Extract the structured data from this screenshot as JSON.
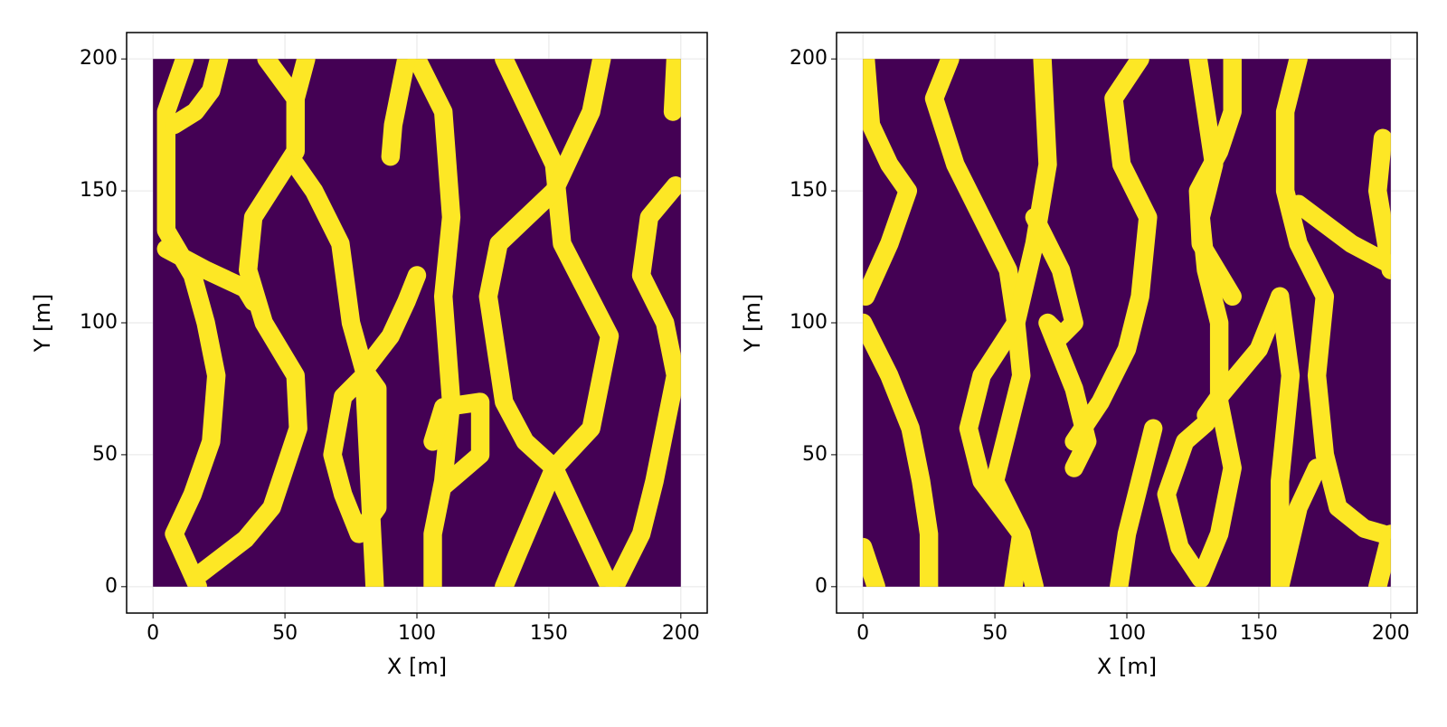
{
  "chart_data": [
    {
      "type": "line",
      "xlabel": "X [m]",
      "ylabel": "Y [m]",
      "xlim": [
        -10,
        210
      ],
      "ylim": [
        -10,
        210
      ],
      "xticks": [
        0,
        50,
        100,
        150,
        200
      ],
      "yticks": [
        0,
        50,
        100,
        150,
        200
      ],
      "grid": true,
      "field_x": [
        0,
        200
      ],
      "field_y": [
        0,
        200
      ],
      "background_color": "#440154",
      "color": "#fde725",
      "line_width": 7,
      "series": [
        {
          "x": [
            12,
            5,
            5,
            15,
            20,
            24,
            22,
            15,
            8,
            17
          ],
          "values": [
            200,
            180,
            135,
            118,
            100,
            80,
            55,
            35,
            20,
            0
          ]
        },
        {
          "x": [
            25,
            22,
            16,
            8
          ],
          "values": [
            200,
            188,
            180,
            175
          ]
        },
        {
          "x": [
            43,
            54,
            54,
            38,
            36,
            42,
            54,
            55,
            45,
            35,
            18
          ],
          "values": [
            200,
            185,
            165,
            140,
            120,
            100,
            80,
            60,
            30,
            18,
            5
          ]
        },
        {
          "x": [
            58,
            54
          ],
          "values": [
            200,
            185
          ]
        },
        {
          "x": [
            5,
            20,
            35,
            38
          ],
          "values": [
            128,
            120,
            113,
            108
          ]
        },
        {
          "x": [
            54,
            61,
            71,
            75,
            80,
            90,
            96,
            100
          ],
          "values": [
            160,
            150,
            130,
            100,
            82,
            95,
            108,
            118
          ]
        },
        {
          "x": [
            80,
            85,
            85,
            78,
            72,
            68,
            72,
            80,
            84
          ],
          "values": [
            82,
            75,
            30,
            20,
            35,
            50,
            72,
            80,
            0
          ]
        },
        {
          "x": [
            100,
            110,
            113,
            110,
            113,
            110,
            106,
            106
          ],
          "values": [
            200,
            180,
            140,
            110,
            70,
            40,
            20,
            0
          ]
        },
        {
          "x": [
            96,
            91,
            90
          ],
          "values": [
            200,
            175,
            163
          ]
        },
        {
          "x": [
            106,
            110,
            124,
            124,
            110
          ],
          "values": [
            55,
            68,
            70,
            50,
            38
          ]
        },
        {
          "x": [
            133,
            152,
            155,
            173,
            166,
            152,
            138,
            133
          ],
          "values": [
            200,
            160,
            130,
            95,
            60,
            45,
            12,
            0
          ]
        },
        {
          "x": [
            170,
            166,
            152,
            131,
            127,
            133,
            141,
            152,
            166,
            173
          ],
          "values": [
            200,
            180,
            150,
            130,
            110,
            70,
            55,
            45,
            15,
            0
          ]
        },
        {
          "x": [
            198,
            188,
            185,
            194,
            198,
            190,
            185,
            175
          ],
          "values": [
            152,
            140,
            118,
            100,
            80,
            40,
            20,
            0
          ]
        },
        {
          "x": [
            198,
            197
          ],
          "values": [
            200,
            180
          ]
        }
      ]
    },
    {
      "type": "line",
      "xlabel": "X [m]",
      "ylabel": "Y [m]",
      "xlim": [
        -10,
        210
      ],
      "ylim": [
        -10,
        210
      ],
      "xticks": [
        0,
        50,
        100,
        150,
        200
      ],
      "yticks": [
        0,
        50,
        100,
        150,
        200
      ],
      "grid": true,
      "field_x": [
        0,
        200
      ],
      "field_y": [
        0,
        200
      ],
      "background_color": "#440154",
      "color": "#fde725",
      "line_width": 7,
      "series": [
        {
          "x": [
            1,
            3,
            10,
            17,
            10,
            1
          ],
          "values": [
            200,
            175,
            160,
            150,
            130,
            110
          ]
        },
        {
          "x": [
            33,
            27,
            35,
            45,
            55,
            58,
            60,
            55,
            50,
            60,
            57
          ],
          "values": [
            200,
            185,
            160,
            140,
            120,
            100,
            80,
            60,
            40,
            20,
            0
          ]
        },
        {
          "x": [
            68,
            70,
            65,
            58,
            45,
            40,
            45,
            60,
            65
          ],
          "values": [
            200,
            160,
            130,
            100,
            80,
            60,
            40,
            20,
            0
          ]
        },
        {
          "x": [
            65,
            75,
            80,
            75,
            70,
            80,
            85,
            80
          ],
          "values": [
            140,
            120,
            100,
            95,
            100,
            75,
            55,
            45
          ]
        },
        {
          "x": [
            105,
            95,
            98,
            108,
            105,
            100,
            90,
            80
          ],
          "values": [
            200,
            185,
            160,
            140,
            110,
            90,
            70,
            55
          ]
        },
        {
          "x": [
            110,
            105,
            100,
            97
          ],
          "values": [
            60,
            40,
            20,
            0
          ]
        },
        {
          "x": [
            127,
            130,
            133,
            128,
            130,
            135,
            135,
            140,
            135,
            128,
            120,
            115,
            122,
            130,
            135
          ],
          "values": [
            200,
            180,
            160,
            140,
            120,
            100,
            70,
            45,
            20,
            3,
            15,
            35,
            55,
            62,
            70
          ]
        },
        {
          "x": [
            140,
            140,
            135,
            127,
            128,
            140
          ],
          "values": [
            200,
            180,
            165,
            150,
            130,
            110
          ]
        },
        {
          "x": [
            165,
            160,
            160,
            165,
            175,
            172,
            175,
            180,
            190,
            197
          ],
          "values": [
            200,
            180,
            150,
            130,
            110,
            80,
            50,
            30,
            22,
            20
          ]
        },
        {
          "x": [
            158,
            150,
            135,
            130
          ],
          "values": [
            110,
            90,
            72,
            65
          ]
        },
        {
          "x": [
            158,
            162,
            160,
            158,
            158,
            165,
            172
          ],
          "values": [
            110,
            80,
            60,
            40,
            0,
            30,
            45
          ]
        },
        {
          "x": [
            165,
            185,
            200
          ],
          "values": [
            145,
            130,
            122
          ]
        },
        {
          "x": [
            197,
            195,
            200
          ],
          "values": [
            170,
            150,
            120
          ]
        },
        {
          "x": [
            0,
            10,
            18,
            22,
            25,
            25
          ],
          "values": [
            100,
            80,
            60,
            40,
            20,
            0
          ]
        },
        {
          "x": [
            0,
            5
          ],
          "values": [
            15,
            0
          ]
        },
        {
          "x": [
            200,
            195
          ],
          "values": [
            20,
            0
          ]
        }
      ]
    }
  ]
}
